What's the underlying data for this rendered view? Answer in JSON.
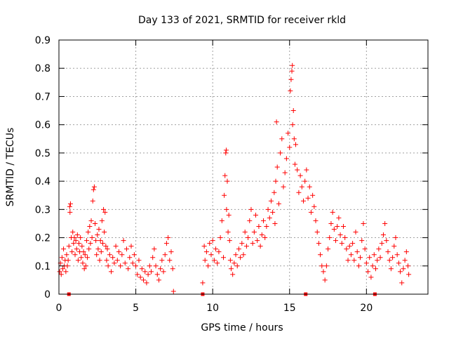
{
  "chart_data": {
    "type": "scatter",
    "title": "Day 133 of 2021, SRMTID for receiver rkld",
    "xlabel": "GPS time / hours",
    "ylabel": "SRMTID / TECUs",
    "xlim": [
      0,
      24
    ],
    "ylim": [
      0,
      0.9
    ],
    "xticks": [
      0,
      5,
      10,
      15,
      20
    ],
    "yticks": [
      0,
      0.1,
      0.2,
      0.3,
      0.4,
      0.5,
      0.6,
      0.7,
      0.8,
      0.9
    ],
    "grid": true,
    "marker": "+",
    "series_color": "#ff0000",
    "points": [
      [
        0.05,
        0.08
      ],
      [
        0.1,
        0.11
      ],
      [
        0.15,
        0.07
      ],
      [
        0.2,
        0.13
      ],
      [
        0.25,
        0.09
      ],
      [
        0.3,
        0.16
      ],
      [
        0.35,
        0.1
      ],
      [
        0.4,
        0.12
      ],
      [
        0.45,
        0.08
      ],
      [
        0.5,
        0.14
      ],
      [
        0.55,
        0.1
      ],
      [
        0.6,
        0.12
      ],
      [
        0.65,
        0.17
      ],
      [
        0.7,
        0.31
      ],
      [
        0.72,
        0.29
      ],
      [
        0.75,
        0.32
      ],
      [
        0.8,
        0.2
      ],
      [
        0.85,
        0.15
      ],
      [
        0.9,
        0.22
      ],
      [
        0.95,
        0.18
      ],
      [
        1.0,
        0.2
      ],
      [
        1.05,
        0.14
      ],
      [
        1.1,
        0.19
      ],
      [
        1.15,
        0.16
      ],
      [
        1.2,
        0.21
      ],
      [
        1.25,
        0.12
      ],
      [
        1.3,
        0.18
      ],
      [
        1.35,
        0.15
      ],
      [
        1.4,
        0.2
      ],
      [
        1.45,
        0.13
      ],
      [
        1.5,
        0.17
      ],
      [
        1.55,
        0.11
      ],
      [
        1.6,
        0.15
      ],
      [
        1.65,
        0.09
      ],
      [
        1.7,
        0.14
      ],
      [
        1.75,
        0.1
      ],
      [
        1.8,
        0.19
      ],
      [
        1.85,
        0.13
      ],
      [
        1.9,
        0.22
      ],
      [
        1.95,
        0.16
      ],
      [
        2.0,
        0.24
      ],
      [
        2.05,
        0.18
      ],
      [
        2.1,
        0.26
      ],
      [
        2.15,
        0.2
      ],
      [
        2.2,
        0.33
      ],
      [
        2.25,
        0.37
      ],
      [
        2.3,
        0.38
      ],
      [
        2.35,
        0.25
      ],
      [
        2.4,
        0.19
      ],
      [
        2.45,
        0.14
      ],
      [
        2.5,
        0.21
      ],
      [
        2.55,
        0.16
      ],
      [
        2.6,
        0.23
      ],
      [
        2.65,
        0.12
      ],
      [
        2.7,
        0.19
      ],
      [
        2.75,
        0.15
      ],
      [
        2.8,
        0.26
      ],
      [
        2.85,
        0.18
      ],
      [
        2.9,
        0.3
      ],
      [
        2.95,
        0.22
      ],
      [
        3.0,
        0.29
      ],
      [
        3.05,
        0.17
      ],
      [
        3.1,
        0.12
      ],
      [
        3.15,
        0.16
      ],
      [
        3.2,
        0.1
      ],
      [
        3.3,
        0.14
      ],
      [
        3.4,
        0.08
      ],
      [
        3.5,
        0.13
      ],
      [
        3.6,
        0.11
      ],
      [
        3.7,
        0.17
      ],
      [
        3.8,
        0.12
      ],
      [
        3.9,
        0.15
      ],
      [
        4.0,
        0.1
      ],
      [
        4.1,
        0.14
      ],
      [
        4.2,
        0.19
      ],
      [
        4.3,
        0.11
      ],
      [
        4.4,
        0.16
      ],
      [
        4.5,
        0.09
      ],
      [
        4.6,
        0.13
      ],
      [
        4.7,
        0.17
      ],
      [
        4.8,
        0.11
      ],
      [
        4.9,
        0.14
      ],
      [
        5.0,
        0.1
      ],
      [
        5.1,
        0.07
      ],
      [
        5.2,
        0.12
      ],
      [
        5.3,
        0.06
      ],
      [
        5.4,
        0.09
      ],
      [
        5.5,
        0.05
      ],
      [
        5.6,
        0.08
      ],
      [
        5.7,
        0.04
      ],
      [
        5.8,
        0.07
      ],
      [
        5.9,
        0.1
      ],
      [
        6.0,
        0.08
      ],
      [
        6.1,
        0.13
      ],
      [
        6.2,
        0.16
      ],
      [
        6.3,
        0.1
      ],
      [
        6.4,
        0.07
      ],
      [
        6.5,
        0.05
      ],
      [
        6.6,
        0.09
      ],
      [
        6.7,
        0.12
      ],
      [
        6.8,
        0.08
      ],
      [
        6.9,
        0.14
      ],
      [
        7.0,
        0.18
      ],
      [
        7.1,
        0.2
      ],
      [
        7.2,
        0.12
      ],
      [
        7.3,
        0.15
      ],
      [
        7.4,
        0.09
      ],
      [
        7.45,
        0.01
      ],
      [
        9.35,
        0.04
      ],
      [
        9.45,
        0.17
      ],
      [
        9.5,
        0.12
      ],
      [
        9.6,
        0.15
      ],
      [
        9.7,
        0.1
      ],
      [
        9.8,
        0.18
      ],
      [
        9.9,
        0.14
      ],
      [
        10.0,
        0.19
      ],
      [
        10.1,
        0.12
      ],
      [
        10.2,
        0.16
      ],
      [
        10.3,
        0.11
      ],
      [
        10.4,
        0.15
      ],
      [
        10.5,
        0.2
      ],
      [
        10.6,
        0.26
      ],
      [
        10.7,
        0.13
      ],
      [
        10.75,
        0.35
      ],
      [
        10.8,
        0.42
      ],
      [
        10.85,
        0.5
      ],
      [
        10.88,
        0.51
      ],
      [
        10.9,
        0.3
      ],
      [
        10.95,
        0.4
      ],
      [
        11.0,
        0.22
      ],
      [
        11.05,
        0.28
      ],
      [
        11.1,
        0.19
      ],
      [
        11.15,
        0.12
      ],
      [
        11.2,
        0.09
      ],
      [
        11.3,
        0.07
      ],
      [
        11.4,
        0.11
      ],
      [
        11.5,
        0.14
      ],
      [
        11.6,
        0.1
      ],
      [
        11.7,
        0.16
      ],
      [
        11.8,
        0.13
      ],
      [
        11.9,
        0.18
      ],
      [
        12.0,
        0.14
      ],
      [
        12.1,
        0.22
      ],
      [
        12.2,
        0.17
      ],
      [
        12.3,
        0.2
      ],
      [
        12.4,
        0.26
      ],
      [
        12.5,
        0.3
      ],
      [
        12.6,
        0.18
      ],
      [
        12.7,
        0.22
      ],
      [
        12.8,
        0.28
      ],
      [
        12.9,
        0.19
      ],
      [
        13.0,
        0.24
      ],
      [
        13.1,
        0.17
      ],
      [
        13.2,
        0.21
      ],
      [
        13.3,
        0.26
      ],
      [
        13.4,
        0.2
      ],
      [
        13.5,
        0.24
      ],
      [
        13.6,
        0.3
      ],
      [
        13.7,
        0.27
      ],
      [
        13.8,
        0.33
      ],
      [
        13.9,
        0.29
      ],
      [
        14.0,
        0.36
      ],
      [
        14.05,
        0.25
      ],
      [
        14.1,
        0.4
      ],
      [
        14.15,
        0.61
      ],
      [
        14.2,
        0.45
      ],
      [
        14.3,
        0.32
      ],
      [
        14.4,
        0.5
      ],
      [
        14.5,
        0.55
      ],
      [
        14.6,
        0.38
      ],
      [
        14.7,
        0.43
      ],
      [
        14.8,
        0.48
      ],
      [
        14.9,
        0.57
      ],
      [
        15.0,
        0.52
      ],
      [
        15.05,
        0.72
      ],
      [
        15.1,
        0.76
      ],
      [
        15.15,
        0.79
      ],
      [
        15.18,
        0.81
      ],
      [
        15.2,
        0.6
      ],
      [
        15.25,
        0.65
      ],
      [
        15.3,
        0.55
      ],
      [
        15.35,
        0.46
      ],
      [
        15.4,
        0.53
      ],
      [
        15.5,
        0.44
      ],
      [
        15.6,
        0.36
      ],
      [
        15.7,
        0.42
      ],
      [
        15.8,
        0.38
      ],
      [
        15.9,
        0.33
      ],
      [
        16.0,
        0.4
      ],
      [
        16.1,
        0.44
      ],
      [
        16.2,
        0.34
      ],
      [
        16.3,
        0.38
      ],
      [
        16.4,
        0.29
      ],
      [
        16.5,
        0.35
      ],
      [
        16.6,
        0.31
      ],
      [
        16.7,
        0.26
      ],
      [
        16.8,
        0.22
      ],
      [
        16.9,
        0.18
      ],
      [
        17.0,
        0.14
      ],
      [
        17.1,
        0.1
      ],
      [
        17.2,
        0.08
      ],
      [
        17.3,
        0.05
      ],
      [
        17.4,
        0.1
      ],
      [
        17.5,
        0.16
      ],
      [
        17.6,
        0.2
      ],
      [
        17.7,
        0.25
      ],
      [
        17.8,
        0.29
      ],
      [
        17.9,
        0.23
      ],
      [
        18.0,
        0.19
      ],
      [
        18.1,
        0.24
      ],
      [
        18.2,
        0.27
      ],
      [
        18.3,
        0.21
      ],
      [
        18.4,
        0.18
      ],
      [
        18.5,
        0.24
      ],
      [
        18.6,
        0.2
      ],
      [
        18.7,
        0.16
      ],
      [
        18.8,
        0.12
      ],
      [
        18.9,
        0.17
      ],
      [
        19.0,
        0.14
      ],
      [
        19.1,
        0.18
      ],
      [
        19.2,
        0.12
      ],
      [
        19.3,
        0.22
      ],
      [
        19.4,
        0.15
      ],
      [
        19.5,
        0.1
      ],
      [
        19.6,
        0.13
      ],
      [
        19.7,
        0.19
      ],
      [
        19.8,
        0.25
      ],
      [
        19.9,
        0.16
      ],
      [
        20.0,
        0.11
      ],
      [
        20.1,
        0.08
      ],
      [
        20.2,
        0.13
      ],
      [
        20.3,
        0.06
      ],
      [
        20.4,
        0.1
      ],
      [
        20.5,
        0.14
      ],
      [
        20.6,
        0.09
      ],
      [
        20.7,
        0.12
      ],
      [
        20.8,
        0.16
      ],
      [
        20.9,
        0.13
      ],
      [
        21.0,
        0.18
      ],
      [
        21.1,
        0.21
      ],
      [
        21.2,
        0.25
      ],
      [
        21.3,
        0.19
      ],
      [
        21.4,
        0.15
      ],
      [
        21.5,
        0.12
      ],
      [
        21.6,
        0.09
      ],
      [
        21.7,
        0.13
      ],
      [
        21.8,
        0.17
      ],
      [
        21.9,
        0.2
      ],
      [
        22.0,
        0.14
      ],
      [
        22.1,
        0.11
      ],
      [
        22.2,
        0.08
      ],
      [
        22.3,
        0.04
      ],
      [
        22.4,
        0.09
      ],
      [
        22.5,
        0.12
      ],
      [
        22.6,
        0.15
      ],
      [
        22.7,
        0.1
      ],
      [
        22.75,
        0.07
      ]
    ],
    "gap_markers": [
      0.65,
      9.35,
      16.05,
      20.55
    ]
  }
}
